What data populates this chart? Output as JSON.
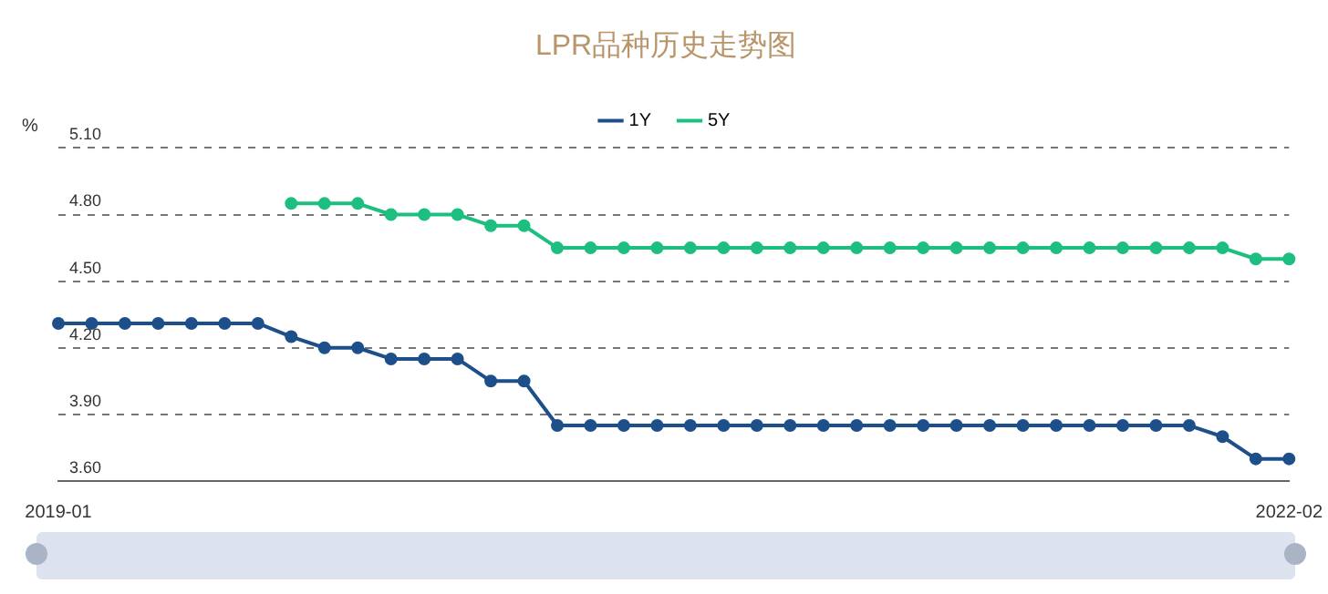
{
  "chart_data": {
    "type": "line",
    "title": "LPR品种历史走势图",
    "ylabel": "%",
    "categories": [
      "2019-01",
      null,
      null,
      null,
      null,
      null,
      null,
      null,
      null,
      null,
      null,
      null,
      null,
      null,
      null,
      null,
      null,
      null,
      null,
      null,
      null,
      null,
      null,
      null,
      null,
      null,
      null,
      null,
      null,
      null,
      null,
      null,
      null,
      null,
      null,
      null,
      null,
      "2022-02"
    ],
    "series": [
      {
        "name": "1Y",
        "color": "#1d4f8a",
        "values": [
          4.31,
          4.31,
          4.31,
          4.31,
          4.31,
          4.31,
          4.31,
          4.25,
          4.2,
          4.2,
          4.15,
          4.15,
          4.15,
          4.05,
          4.05,
          3.85,
          3.85,
          3.85,
          3.85,
          3.85,
          3.85,
          3.85,
          3.85,
          3.85,
          3.85,
          3.85,
          3.85,
          3.85,
          3.85,
          3.85,
          3.85,
          3.85,
          3.85,
          3.85,
          3.85,
          3.8,
          3.7,
          3.7
        ]
      },
      {
        "name": "5Y",
        "color": "#1dbf80",
        "values": [
          null,
          null,
          null,
          null,
          null,
          null,
          null,
          4.85,
          4.85,
          4.85,
          4.8,
          4.8,
          4.8,
          4.75,
          4.75,
          4.65,
          4.65,
          4.65,
          4.65,
          4.65,
          4.65,
          4.65,
          4.65,
          4.65,
          4.65,
          4.65,
          4.65,
          4.65,
          4.65,
          4.65,
          4.65,
          4.65,
          4.65,
          4.65,
          4.65,
          4.65,
          4.6,
          4.6
        ]
      }
    ],
    "ylim": [
      3.6,
      5.1
    ],
    "yticks": [
      {
        "value": 3.6,
        "label": "3.60"
      },
      {
        "value": 3.9,
        "label": "3.90"
      },
      {
        "value": 4.2,
        "label": "4.20"
      },
      {
        "value": 4.5,
        "label": "4.50"
      },
      {
        "value": 4.8,
        "label": "4.80"
      },
      {
        "value": 5.1,
        "label": "5.10"
      }
    ],
    "grid": "y",
    "legend": "top",
    "marker": "circle",
    "line_style": "solid"
  }
}
